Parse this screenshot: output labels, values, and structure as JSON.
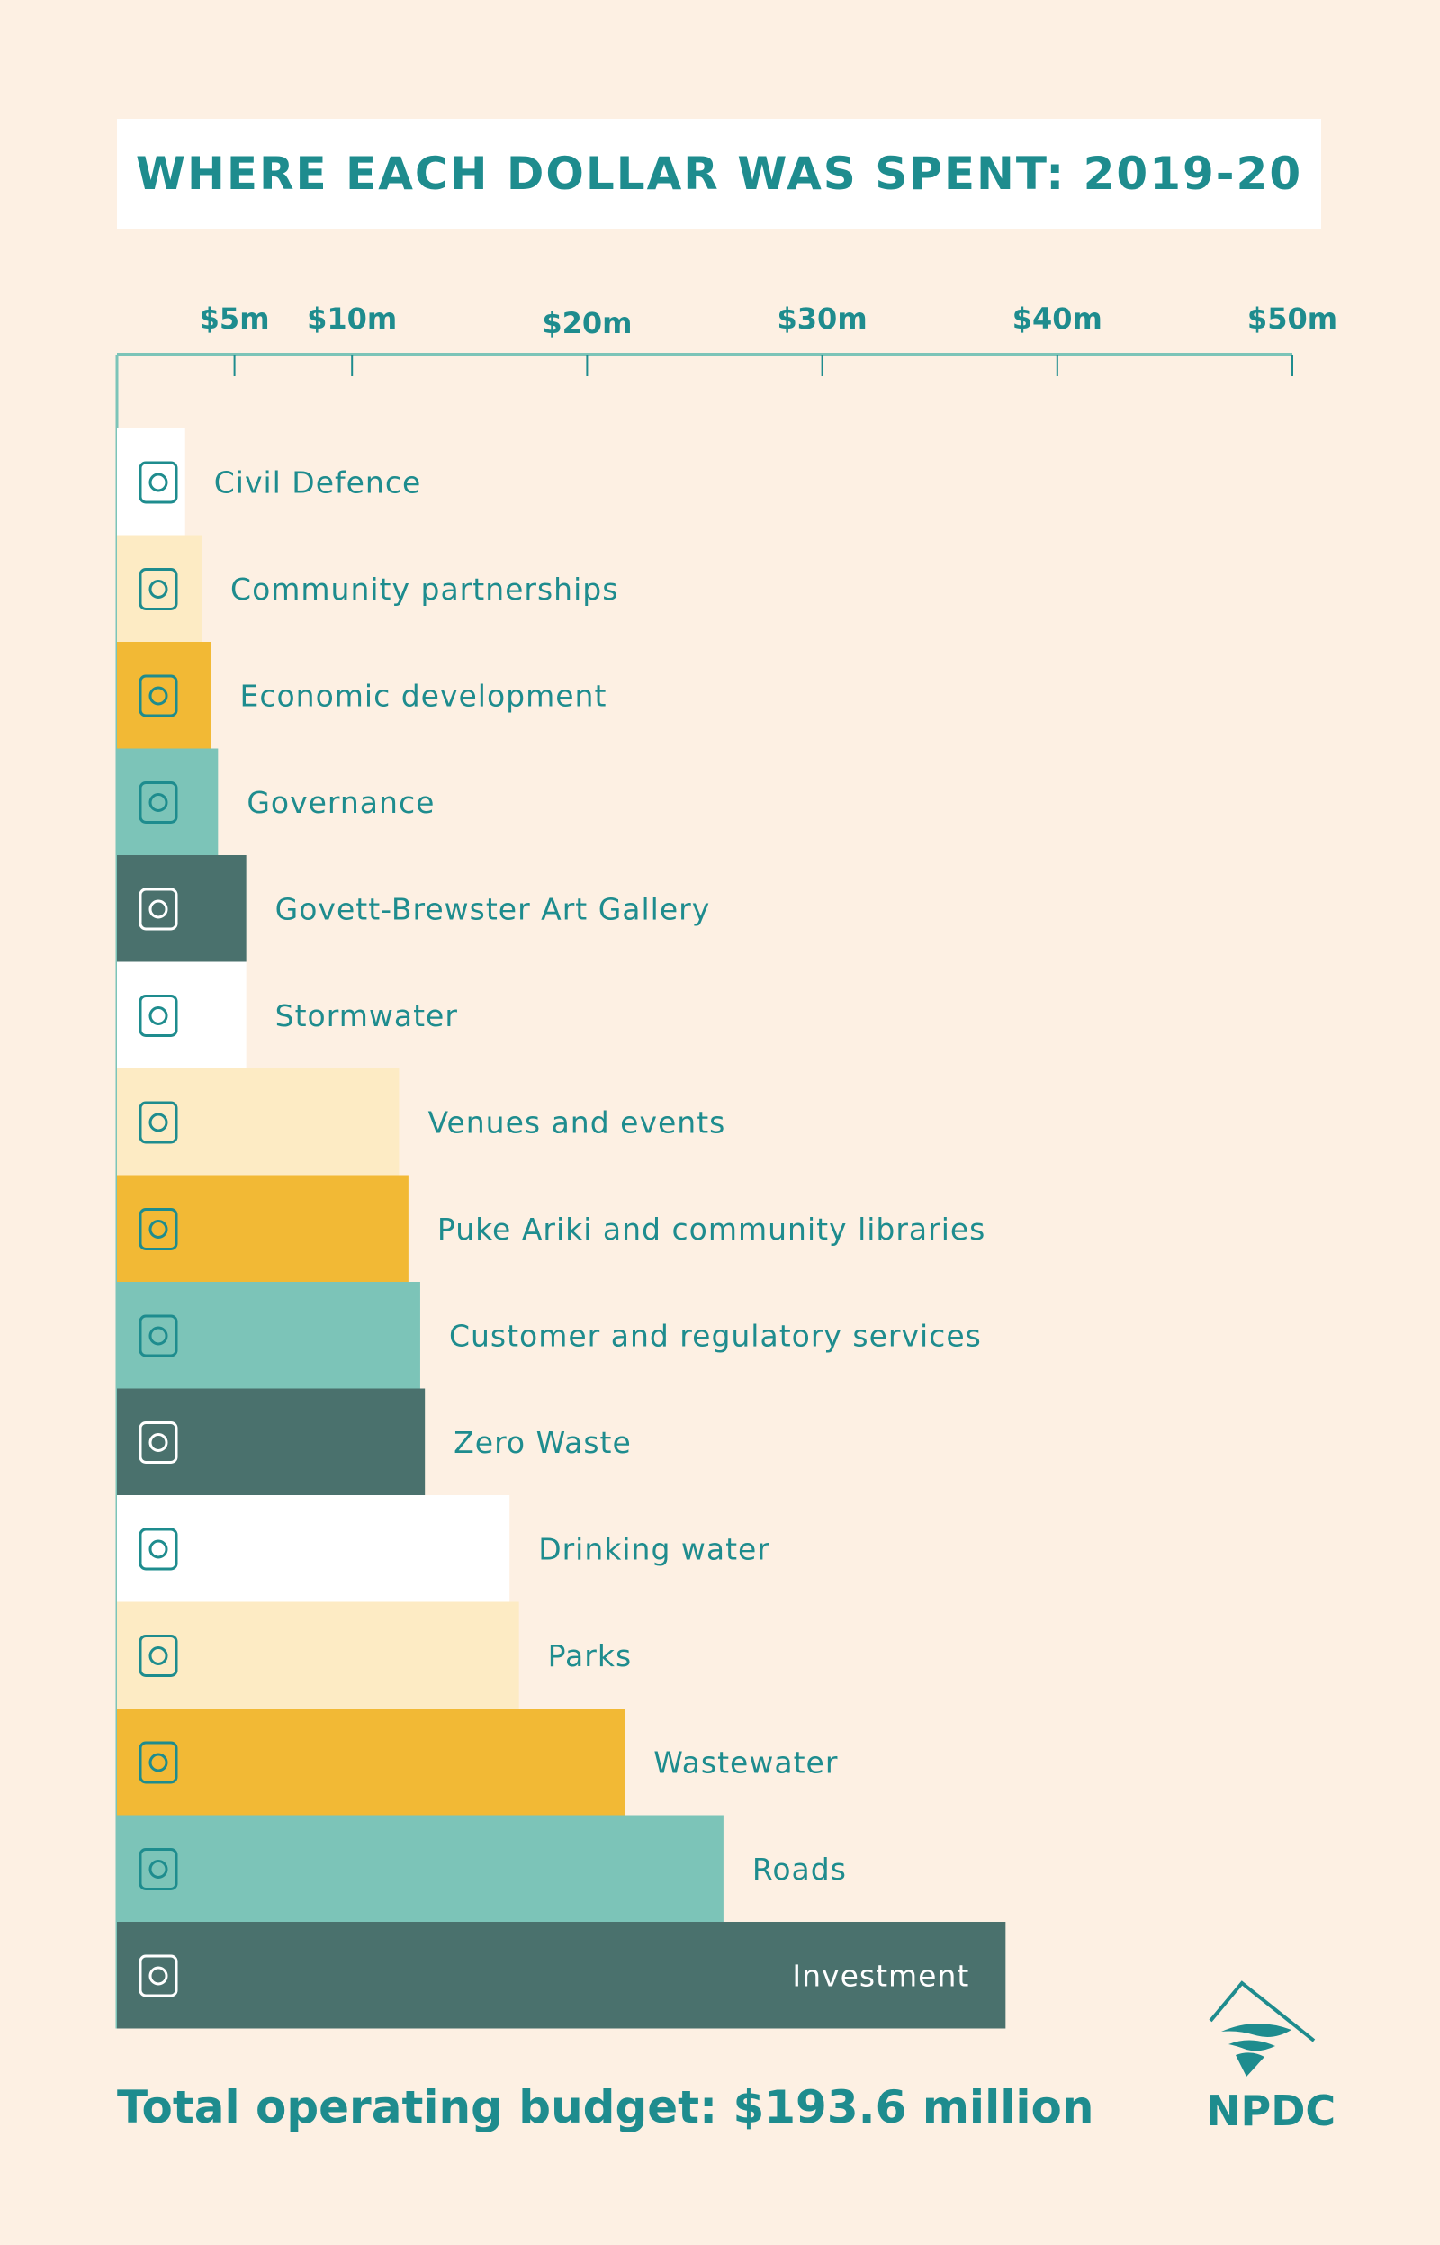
{
  "title": "WHERE EACH DOLLAR WAS SPENT: 2019-20",
  "footer": "Total operating budget: $193.6 million",
  "logo_text": "NPDC",
  "colors": {
    "text": "#1e8c8e",
    "background": "#fdf0e3",
    "white": "#ffffff",
    "pale": "#fdebc4",
    "yellow": "#f2b935",
    "mint": "#7cc4b8",
    "dark": "#4a716d"
  },
  "chart_data": {
    "type": "bar",
    "orientation": "horizontal",
    "title": "WHERE EACH DOLLAR WAS SPENT: 2019-20",
    "axis_position": "top",
    "xlim": [
      0,
      50
    ],
    "x_ticks": [
      5,
      10,
      20,
      30,
      40,
      50
    ],
    "x_tick_labels": [
      "$5m",
      "$10m",
      "$20m",
      "$30m",
      "$40m",
      "$50m"
    ],
    "categories": [
      "Civil Defence",
      "Community partnerships",
      "Economic development",
      "Governance",
      "Govett-Brewster Art Gallery",
      "Stormwater",
      "Venues and events",
      "Puke Ariki and community libraries",
      "Customer and regulatory services",
      "Zero Waste",
      "Drinking water",
      "Parks",
      "Wastewater",
      "Roads",
      "Investment"
    ],
    "values": [
      2.9,
      3.6,
      4.0,
      4.3,
      5.5,
      5.5,
      12.0,
      12.4,
      12.9,
      13.1,
      16.7,
      17.1,
      21.6,
      25.8,
      37.8
    ],
    "bar_colors": [
      "#ffffff",
      "#fdebc4",
      "#f2b935",
      "#7cc4b8",
      "#4a716d",
      "#ffffff",
      "#fdebc4",
      "#f2b935",
      "#7cc4b8",
      "#4a716d",
      "#ffffff",
      "#fdebc4",
      "#f2b935",
      "#7cc4b8",
      "#4a716d"
    ],
    "icons": [
      "helicopter-icon",
      "people-group-icon",
      "seedlings-sun-icon",
      "clipboard-checklist-icon",
      "art-palette-icon",
      "umbrella-rain-icon",
      "microphone-music-icon",
      "library-books-icon",
      "phone-chat-icon",
      "recycling-bin-icon",
      "water-tap-icon",
      "bench-tree-icon",
      "water-drops-icon",
      "traffic-light-icon",
      "coins-icon"
    ],
    "grid": false,
    "legend": "none"
  }
}
